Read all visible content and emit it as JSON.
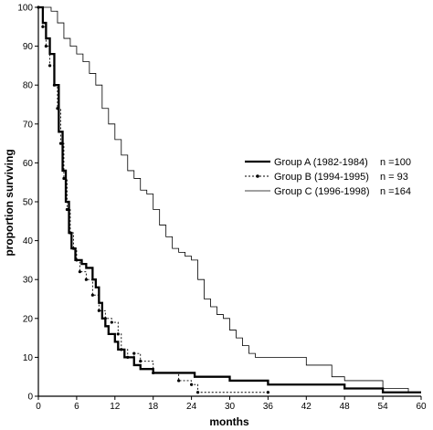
{
  "chart_data": {
    "type": "line",
    "title": "",
    "xlabel": "months",
    "ylabel": "proportion surviving",
    "xlim": [
      0,
      60
    ],
    "ylim": [
      0,
      100
    ],
    "xticks": [
      0,
      6,
      12,
      18,
      24,
      30,
      36,
      42,
      48,
      54,
      60
    ],
    "yticks": [
      0,
      10,
      20,
      30,
      40,
      50,
      60,
      70,
      80,
      90,
      100
    ],
    "grid": false,
    "legend_position": "right",
    "series": [
      {
        "name": "Group A (1982-1984)",
        "n_label": "n =100",
        "style": "thick solid",
        "points": [
          [
            0,
            100
          ],
          [
            0.7,
            96
          ],
          [
            1.2,
            92
          ],
          [
            1.8,
            88
          ],
          [
            2.5,
            80
          ],
          [
            3.2,
            68
          ],
          [
            3.8,
            58
          ],
          [
            4.3,
            50
          ],
          [
            4.8,
            42
          ],
          [
            5.2,
            38
          ],
          [
            5.8,
            35
          ],
          [
            6.8,
            34
          ],
          [
            7.5,
            33
          ],
          [
            8.5,
            30
          ],
          [
            9,
            28
          ],
          [
            9.5,
            24
          ],
          [
            10,
            20
          ],
          [
            10.5,
            18
          ],
          [
            11,
            16
          ],
          [
            12,
            14
          ],
          [
            12.5,
            12
          ],
          [
            13.5,
            10
          ],
          [
            15,
            8
          ],
          [
            16,
            7
          ],
          [
            18,
            6
          ],
          [
            24,
            6
          ],
          [
            24.5,
            5
          ],
          [
            30,
            4
          ],
          [
            36,
            3
          ],
          [
            48,
            2
          ],
          [
            54,
            1
          ],
          [
            60,
            1
          ]
        ]
      },
      {
        "name": "Group B (1994-1995)",
        "n_label": "n = 93",
        "style": "dotted with markers",
        "points": [
          [
            0,
            100
          ],
          [
            0.7,
            95
          ],
          [
            1.2,
            90
          ],
          [
            1.8,
            85
          ],
          [
            2.5,
            80
          ],
          [
            3,
            74
          ],
          [
            3.5,
            65
          ],
          [
            4,
            56
          ],
          [
            4.5,
            48
          ],
          [
            5,
            42
          ],
          [
            5.5,
            38
          ],
          [
            6,
            35
          ],
          [
            6.5,
            32
          ],
          [
            7.5,
            30
          ],
          [
            8.5,
            26
          ],
          [
            9.5,
            22
          ],
          [
            10.5,
            20
          ],
          [
            11.5,
            19
          ],
          [
            12.5,
            16
          ],
          [
            13,
            12
          ],
          [
            14,
            10
          ],
          [
            15,
            11
          ],
          [
            16,
            9
          ],
          [
            18,
            6
          ],
          [
            22,
            4
          ],
          [
            24,
            3
          ],
          [
            25,
            1
          ],
          [
            36,
            1
          ]
        ]
      },
      {
        "name": "Group C (1996-1998)",
        "n_label": "n =164",
        "style": "thin solid",
        "points": [
          [
            0,
            100
          ],
          [
            2,
            99
          ],
          [
            3,
            96
          ],
          [
            4,
            92
          ],
          [
            5,
            90
          ],
          [
            6,
            88
          ],
          [
            7,
            86
          ],
          [
            8,
            83
          ],
          [
            9,
            80
          ],
          [
            10,
            74
          ],
          [
            11,
            70
          ],
          [
            12,
            66
          ],
          [
            13,
            62
          ],
          [
            14,
            58
          ],
          [
            15,
            56
          ],
          [
            16,
            53
          ],
          [
            17,
            52
          ],
          [
            18,
            48
          ],
          [
            19,
            44
          ],
          [
            20,
            41
          ],
          [
            21,
            38
          ],
          [
            22,
            37
          ],
          [
            23,
            36
          ],
          [
            24,
            35
          ],
          [
            25,
            30
          ],
          [
            26,
            25
          ],
          [
            27,
            23
          ],
          [
            28,
            21
          ],
          [
            29,
            20
          ],
          [
            30,
            17
          ],
          [
            31,
            15
          ],
          [
            32,
            13
          ],
          [
            33,
            11
          ],
          [
            34,
            10
          ],
          [
            36,
            10
          ],
          [
            40,
            10
          ],
          [
            42,
            8
          ],
          [
            46,
            5
          ],
          [
            48,
            4
          ],
          [
            54,
            2
          ],
          [
            58,
            1
          ],
          [
            60,
            1
          ]
        ]
      }
    ]
  }
}
